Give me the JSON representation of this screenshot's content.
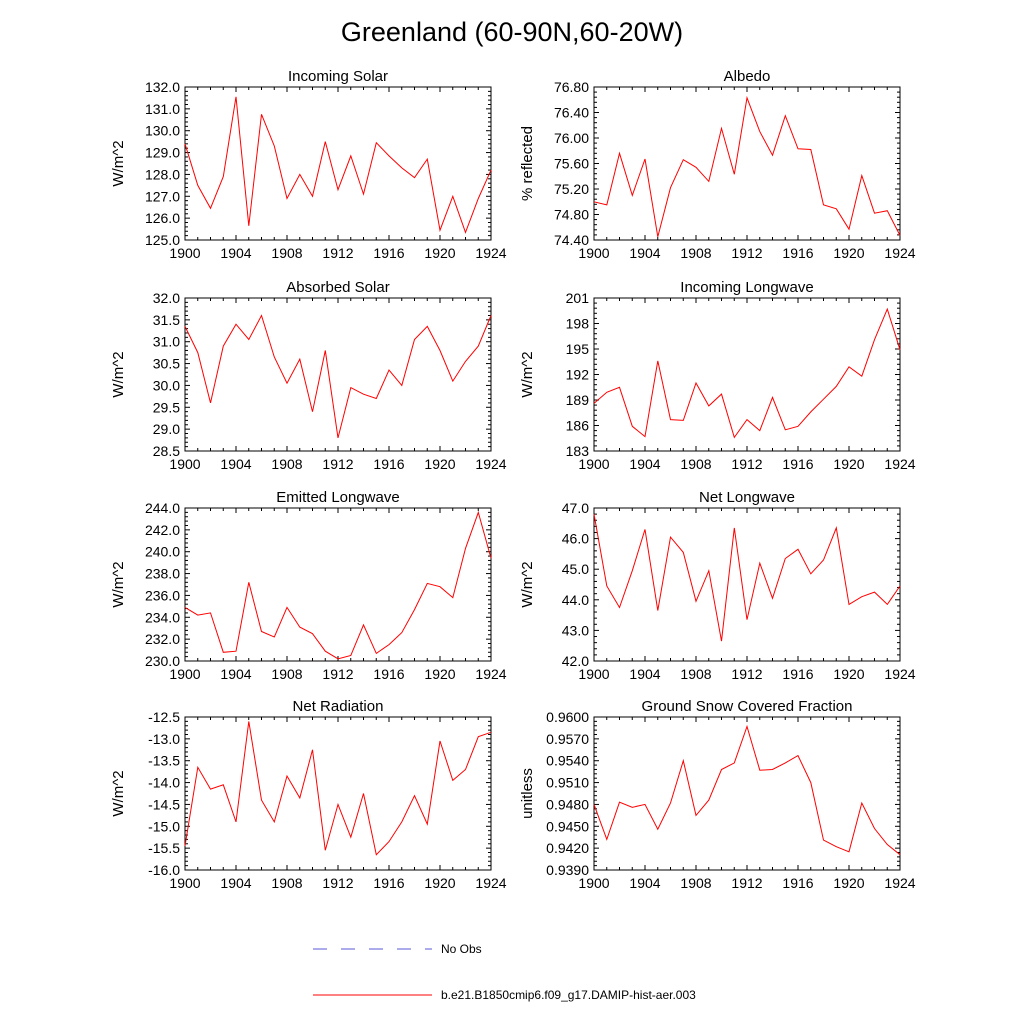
{
  "title": "Greenland (60-90N,60-20W)",
  "legend": [
    {
      "label": "No Obs",
      "color": "#5a5ad8",
      "style": "dashed"
    },
    {
      "label": "b.e21.B1850cmip6.f09_g17.DAMIP-hist-aer.003",
      "color": "#ff0000",
      "style": "solid"
    }
  ],
  "chart_data": [
    {
      "type": "line",
      "title": "Incoming Solar",
      "ylabel": "W/m^2",
      "xlim": [
        1900,
        1924
      ],
      "ylim": [
        125.0,
        132.0
      ],
      "xticks": [
        "1900",
        "1904",
        "1908",
        "1912",
        "1916",
        "1920",
        "1924"
      ],
      "yticks": [
        "125.0",
        "126.0",
        "127.0",
        "128.0",
        "129.0",
        "130.0",
        "131.0",
        "132.0"
      ],
      "grid": false,
      "series": [
        {
          "color": "#ff0000",
          "x": [
            1900,
            1901,
            1902,
            1903,
            1904,
            1905,
            1906,
            1907,
            1908,
            1909,
            1910,
            1911,
            1912,
            1913,
            1914,
            1915,
            1916,
            1917,
            1918,
            1919,
            1920,
            1921,
            1922,
            1923,
            1924
          ],
          "y": [
            129.4,
            127.5,
            126.45,
            127.9,
            131.55,
            125.65,
            130.75,
            129.3,
            126.9,
            128.0,
            127.0,
            129.5,
            127.3,
            128.85,
            127.1,
            129.45,
            128.85,
            128.3,
            127.85,
            128.7,
            125.45,
            127.0,
            125.35,
            126.9,
            128.2
          ]
        }
      ]
    },
    {
      "type": "line",
      "title": "Albedo",
      "ylabel": "% reflected",
      "xlim": [
        1900,
        1924
      ],
      "ylim": [
        74.4,
        76.8
      ],
      "xticks": [
        "1900",
        "1904",
        "1908",
        "1912",
        "1916",
        "1920",
        "1924"
      ],
      "yticks": [
        "74.40",
        "74.80",
        "75.20",
        "75.60",
        "76.00",
        "76.40",
        "76.80"
      ],
      "grid": false,
      "series": [
        {
          "color": "#ff0000",
          "x": [
            1900,
            1901,
            1902,
            1903,
            1904,
            1905,
            1906,
            1907,
            1908,
            1909,
            1910,
            1911,
            1912,
            1913,
            1914,
            1915,
            1916,
            1917,
            1918,
            1919,
            1920,
            1921,
            1922,
            1923,
            1924
          ],
          "y": [
            75.0,
            74.95,
            75.76,
            75.1,
            75.67,
            74.45,
            75.22,
            75.66,
            75.54,
            75.32,
            76.15,
            75.43,
            76.63,
            76.1,
            75.73,
            76.35,
            75.83,
            75.82,
            74.95,
            74.89,
            74.57,
            75.41,
            74.82,
            74.86,
            74.47
          ]
        }
      ]
    },
    {
      "type": "line",
      "title": "Absorbed Solar",
      "ylabel": "W/m^2",
      "xlim": [
        1900,
        1924
      ],
      "ylim": [
        28.5,
        32.0
      ],
      "xticks": [
        "1900",
        "1904",
        "1908",
        "1912",
        "1916",
        "1920",
        "1924"
      ],
      "yticks": [
        "28.5",
        "29.0",
        "29.5",
        "30.0",
        "30.5",
        "31.0",
        "31.5",
        "32.0"
      ],
      "grid": false,
      "series": [
        {
          "color": "#ff0000",
          "x": [
            1900,
            1901,
            1902,
            1903,
            1904,
            1905,
            1906,
            1907,
            1908,
            1909,
            1910,
            1911,
            1912,
            1913,
            1914,
            1915,
            1916,
            1917,
            1918,
            1919,
            1920,
            1921,
            1922,
            1923,
            1924
          ],
          "y": [
            31.35,
            30.75,
            29.6,
            30.9,
            31.4,
            31.05,
            31.6,
            30.65,
            30.05,
            30.6,
            29.4,
            30.8,
            28.8,
            29.95,
            29.8,
            29.7,
            30.35,
            30.0,
            31.05,
            31.35,
            30.8,
            30.1,
            30.55,
            30.9,
            31.6
          ]
        }
      ]
    },
    {
      "type": "line",
      "title": "Incoming Longwave",
      "ylabel": "W/m^2",
      "xlim": [
        1900,
        1924
      ],
      "ylim": [
        183,
        201
      ],
      "xticks": [
        "1900",
        "1904",
        "1908",
        "1912",
        "1916",
        "1920",
        "1924"
      ],
      "yticks": [
        "183",
        "186",
        "189",
        "192",
        "195",
        "198",
        "201"
      ],
      "grid": false,
      "series": [
        {
          "color": "#ff0000",
          "x": [
            1900,
            1901,
            1902,
            1903,
            1904,
            1905,
            1906,
            1907,
            1908,
            1909,
            1910,
            1911,
            1912,
            1913,
            1914,
            1915,
            1916,
            1917,
            1918,
            1919,
            1920,
            1921,
            1922,
            1923,
            1924
          ],
          "y": [
            188.6,
            189.9,
            190.5,
            185.9,
            184.7,
            193.6,
            186.7,
            186.6,
            191.0,
            188.3,
            189.7,
            184.6,
            186.7,
            185.4,
            189.3,
            185.5,
            185.9,
            187.6,
            189.1,
            190.6,
            192.9,
            191.8,
            196.1,
            199.7,
            194.9
          ]
        }
      ]
    },
    {
      "type": "line",
      "title": "Emitted Longwave",
      "ylabel": "W/m^2",
      "xlim": [
        1900,
        1924
      ],
      "ylim": [
        230.0,
        244.0
      ],
      "xticks": [
        "1900",
        "1904",
        "1908",
        "1912",
        "1916",
        "1920",
        "1924"
      ],
      "yticks": [
        "230.0",
        "232.0",
        "234.0",
        "236.0",
        "238.0",
        "240.0",
        "242.0",
        "244.0"
      ],
      "grid": false,
      "series": [
        {
          "color": "#ff0000",
          "x": [
            1900,
            1901,
            1902,
            1903,
            1904,
            1905,
            1906,
            1907,
            1908,
            1909,
            1910,
            1911,
            1912,
            1913,
            1914,
            1915,
            1916,
            1917,
            1918,
            1919,
            1920,
            1921,
            1922,
            1923,
            1924
          ],
          "y": [
            234.9,
            234.2,
            234.4,
            230.8,
            230.9,
            237.2,
            232.7,
            232.2,
            234.9,
            233.1,
            232.5,
            230.9,
            230.2,
            230.5,
            233.3,
            230.7,
            231.5,
            232.6,
            234.7,
            237.1,
            236.8,
            235.8,
            240.3,
            243.6,
            239.4
          ]
        }
      ]
    },
    {
      "type": "line",
      "title": "Net Longwave",
      "ylabel": "W/m^2",
      "xlim": [
        1900,
        1924
      ],
      "ylim": [
        42.0,
        47.0
      ],
      "xticks": [
        "1900",
        "1904",
        "1908",
        "1912",
        "1916",
        "1920",
        "1924"
      ],
      "yticks": [
        "42.0",
        "43.0",
        "44.0",
        "45.0",
        "46.0",
        "47.0"
      ],
      "grid": false,
      "series": [
        {
          "color": "#ff0000",
          "x": [
            1900,
            1901,
            1902,
            1903,
            1904,
            1905,
            1906,
            1907,
            1908,
            1909,
            1910,
            1911,
            1912,
            1913,
            1914,
            1915,
            1916,
            1917,
            1918,
            1919,
            1920,
            1921,
            1922,
            1923,
            1924
          ],
          "y": [
            46.8,
            44.45,
            43.75,
            44.95,
            46.3,
            43.65,
            46.05,
            45.55,
            43.95,
            44.95,
            42.65,
            46.35,
            43.35,
            45.2,
            44.05,
            45.35,
            45.65,
            44.85,
            45.3,
            46.35,
            43.85,
            44.1,
            44.25,
            43.85,
            44.45
          ]
        }
      ]
    },
    {
      "type": "line",
      "title": "Net Radiation",
      "ylabel": "W/m^2",
      "xlim": [
        1900,
        1924
      ],
      "ylim": [
        -16.0,
        -12.5
      ],
      "xticks": [
        "1900",
        "1904",
        "1908",
        "1912",
        "1916",
        "1920",
        "1924"
      ],
      "yticks": [
        "-16.0",
        "-15.5",
        "-15.0",
        "-14.5",
        "-14.0",
        "-13.5",
        "-13.0",
        "-12.5"
      ],
      "grid": false,
      "series": [
        {
          "color": "#ff0000",
          "x": [
            1900,
            1901,
            1902,
            1903,
            1904,
            1905,
            1906,
            1907,
            1908,
            1909,
            1910,
            1911,
            1912,
            1913,
            1914,
            1915,
            1916,
            1917,
            1918,
            1919,
            1920,
            1921,
            1922,
            1923,
            1924
          ],
          "y": [
            -15.45,
            -13.65,
            -14.15,
            -14.05,
            -14.9,
            -12.6,
            -14.4,
            -14.9,
            -13.85,
            -14.35,
            -13.25,
            -15.55,
            -14.5,
            -15.25,
            -14.25,
            -15.65,
            -15.35,
            -14.9,
            -14.3,
            -14.95,
            -13.05,
            -13.95,
            -13.7,
            -12.95,
            -12.85
          ]
        }
      ]
    },
    {
      "type": "line",
      "title": "Ground Snow Covered Fraction",
      "ylabel": "unitless",
      "xlim": [
        1900,
        1924
      ],
      "ylim": [
        0.939,
        0.96
      ],
      "xticks": [
        "1900",
        "1904",
        "1908",
        "1912",
        "1916",
        "1920",
        "1924"
      ],
      "yticks": [
        "0.9390",
        "0.9420",
        "0.9450",
        "0.9480",
        "0.9510",
        "0.9540",
        "0.9570",
        "0.9600"
      ],
      "grid": false,
      "series": [
        {
          "color": "#ff0000",
          "x": [
            1900,
            1901,
            1902,
            1903,
            1904,
            1905,
            1906,
            1907,
            1908,
            1909,
            1910,
            1911,
            1912,
            1913,
            1914,
            1915,
            1916,
            1917,
            1918,
            1919,
            1920,
            1921,
            1922,
            1923,
            1924
          ],
          "y": [
            0.948,
            0.9432,
            0.9483,
            0.9476,
            0.948,
            0.9446,
            0.9482,
            0.954,
            0.9465,
            0.9486,
            0.9528,
            0.9537,
            0.9587,
            0.9527,
            0.9528,
            0.9537,
            0.9547,
            0.951,
            0.9431,
            0.9422,
            0.9415,
            0.9482,
            0.9447,
            0.9425,
            0.9411
          ]
        }
      ]
    }
  ]
}
